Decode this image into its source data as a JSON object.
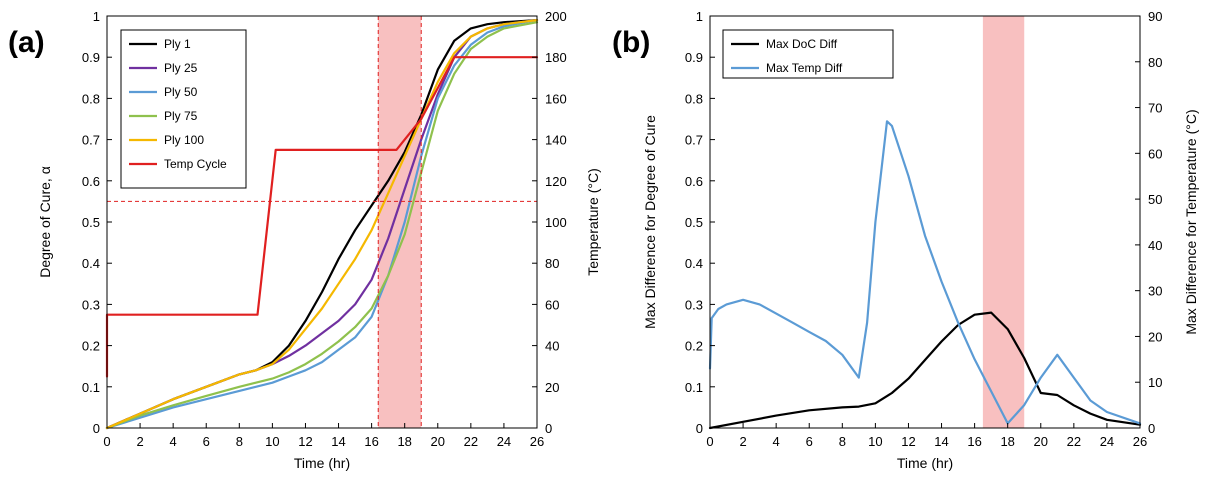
{
  "chart_data": [
    {
      "panel": "(a)",
      "type": "line",
      "xlabel": "Time (hr)",
      "ylabel": "Degree of Cure, α",
      "y2label": "Temperature (°C)",
      "xlim": [
        0,
        26
      ],
      "ylim": [
        0,
        1
      ],
      "y2lim": [
        0,
        200
      ],
      "xticks": [
        0,
        2,
        4,
        6,
        8,
        10,
        12,
        14,
        16,
        18,
        20,
        22,
        24,
        26
      ],
      "yticks": [
        0,
        0.1,
        0.2,
        0.3,
        0.4,
        0.5,
        0.6,
        0.7,
        0.8,
        0.9,
        1
      ],
      "y2ticks": [
        0,
        20,
        40,
        60,
        80,
        100,
        120,
        140,
        160,
        180,
        200
      ],
      "legend_position": "top-left",
      "highlight_band": {
        "x": [
          16.4,
          19
        ],
        "color": "#f7b9b9"
      },
      "ref_lines": {
        "vertical": [
          16.4,
          19
        ],
        "horizontal": [
          0.55
        ],
        "color": "#e02020"
      },
      "series": [
        {
          "name": "Ply 1",
          "color": "#000000",
          "axis": "left",
          "x": [
            0,
            2,
            4,
            6,
            8,
            9,
            10,
            11,
            12,
            13,
            14,
            15,
            16,
            17,
            18,
            19,
            20,
            21,
            22,
            23,
            24,
            26
          ],
          "y": [
            0,
            0.035,
            0.07,
            0.1,
            0.13,
            0.14,
            0.16,
            0.2,
            0.26,
            0.33,
            0.41,
            0.48,
            0.54,
            0.6,
            0.67,
            0.76,
            0.87,
            0.94,
            0.97,
            0.98,
            0.985,
            0.99
          ]
        },
        {
          "name": "Ply 25",
          "color": "#7030a0",
          "axis": "left",
          "x": [
            0,
            2,
            4,
            6,
            8,
            9,
            10,
            11,
            12,
            13,
            14,
            15,
            16,
            17,
            18,
            19,
            20,
            21,
            22,
            23,
            24,
            26
          ],
          "y": [
            0,
            0.035,
            0.07,
            0.1,
            0.13,
            0.14,
            0.155,
            0.175,
            0.2,
            0.23,
            0.26,
            0.3,
            0.36,
            0.46,
            0.58,
            0.7,
            0.81,
            0.9,
            0.95,
            0.97,
            0.98,
            0.99
          ]
        },
        {
          "name": "Ply 50",
          "color": "#5b9bd5",
          "axis": "left",
          "x": [
            0,
            2,
            4,
            6,
            8,
            9,
            10,
            11,
            12,
            13,
            14,
            15,
            16,
            17,
            18,
            19,
            20,
            21,
            22,
            23,
            24,
            26
          ],
          "y": [
            0,
            0.025,
            0.05,
            0.07,
            0.09,
            0.1,
            0.11,
            0.125,
            0.14,
            0.16,
            0.19,
            0.22,
            0.27,
            0.37,
            0.5,
            0.66,
            0.8,
            0.88,
            0.93,
            0.96,
            0.975,
            0.99
          ]
        },
        {
          "name": "Ply 75",
          "color": "#8fc14d",
          "axis": "left",
          "x": [
            0,
            2,
            4,
            6,
            8,
            9,
            10,
            11,
            12,
            13,
            14,
            15,
            16,
            17,
            18,
            19,
            20,
            21,
            22,
            23,
            24,
            26
          ],
          "y": [
            0,
            0.03,
            0.055,
            0.078,
            0.1,
            0.11,
            0.12,
            0.135,
            0.155,
            0.18,
            0.21,
            0.245,
            0.29,
            0.37,
            0.47,
            0.62,
            0.77,
            0.86,
            0.92,
            0.95,
            0.97,
            0.985
          ]
        },
        {
          "name": "Ply 100",
          "color": "#f5b800",
          "axis": "left",
          "x": [
            0,
            2,
            4,
            6,
            8,
            9,
            10,
            11,
            12,
            13,
            14,
            15,
            16,
            17,
            18,
            19,
            20,
            21,
            22,
            23,
            24,
            26
          ],
          "y": [
            0,
            0.035,
            0.07,
            0.1,
            0.13,
            0.14,
            0.155,
            0.19,
            0.24,
            0.29,
            0.35,
            0.41,
            0.48,
            0.57,
            0.66,
            0.75,
            0.84,
            0.91,
            0.95,
            0.97,
            0.98,
            0.99
          ]
        },
        {
          "name": "Temp Cycle",
          "color": "#e02020",
          "axis": "right",
          "x": [
            0,
            0,
            9.1,
            10.2,
            16.5,
            17.5,
            19,
            21,
            26
          ],
          "y": [
            25,
            55,
            55,
            135,
            135,
            135,
            150,
            180,
            180
          ]
        }
      ]
    },
    {
      "panel": "(b)",
      "type": "line",
      "xlabel": "Time (hr)",
      "ylabel": "Max Difference for Degree of Cure",
      "y2label": "Max Difference for Temperature (°C)",
      "xlim": [
        0,
        26
      ],
      "ylim": [
        0,
        1
      ],
      "y2lim": [
        0,
        90
      ],
      "xticks": [
        0,
        2,
        4,
        6,
        8,
        10,
        12,
        14,
        16,
        18,
        20,
        22,
        24,
        26
      ],
      "yticks": [
        0,
        0.1,
        0.2,
        0.3,
        0.4,
        0.5,
        0.6,
        0.7,
        0.8,
        0.9,
        1
      ],
      "y2ticks": [
        0,
        10,
        20,
        30,
        40,
        50,
        60,
        70,
        80,
        90
      ],
      "legend_position": "top-left",
      "highlight_band": {
        "x": [
          16.5,
          19
        ],
        "color": "#f7b9b9"
      },
      "series": [
        {
          "name": "Max DoC Diff",
          "color": "#000000",
          "axis": "left",
          "x": [
            0,
            2,
            4,
            6,
            8,
            9,
            10,
            11,
            12,
            13,
            14,
            15,
            16,
            17,
            18,
            19,
            20,
            21,
            22,
            23,
            24,
            26
          ],
          "y": [
            0,
            0.015,
            0.03,
            0.043,
            0.05,
            0.052,
            0.06,
            0.085,
            0.12,
            0.165,
            0.21,
            0.25,
            0.275,
            0.28,
            0.24,
            0.17,
            0.085,
            0.08,
            0.055,
            0.035,
            0.02,
            0.008
          ]
        },
        {
          "name": "Max Temp Diff",
          "color": "#5b9bd5",
          "axis": "right",
          "x": [
            0,
            0.1,
            0.5,
            1,
            2,
            3,
            4,
            5,
            6,
            7,
            8,
            9,
            9.5,
            10,
            10.7,
            11,
            12,
            13,
            14,
            15,
            16,
            17,
            18,
            19,
            20,
            21,
            22,
            23,
            24,
            26
          ],
          "y": [
            13,
            24,
            26,
            27,
            28,
            27,
            25,
            23,
            21,
            19,
            16,
            11,
            23,
            45,
            67,
            66,
            55,
            42,
            32,
            23,
            15,
            8,
            1,
            5,
            11,
            16,
            11,
            6,
            3.5,
            1
          ]
        }
      ]
    }
  ]
}
